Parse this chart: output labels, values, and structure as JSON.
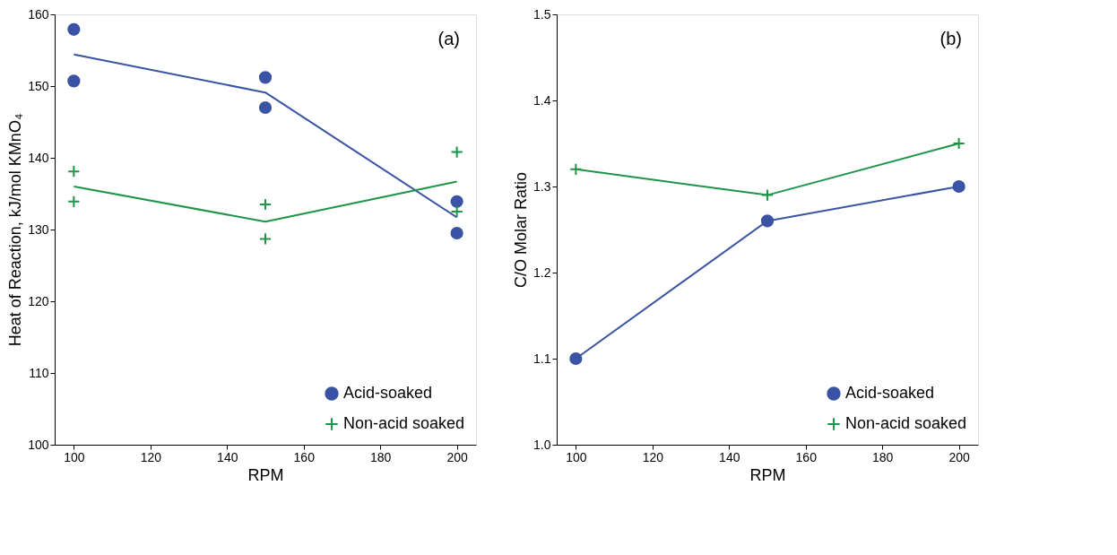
{
  "chart_data": [
    {
      "type": "scatter",
      "xlabel": "RPM",
      "ylabel": "Heat of Reaction, kJ/mol KMnO₄",
      "xlim": [
        95,
        205
      ],
      "xticks": [
        100,
        120,
        140,
        160,
        180,
        200
      ],
      "ylim": [
        100,
        160
      ],
      "yticks": [
        100,
        110,
        120,
        130,
        140,
        150,
        160
      ],
      "grid": false,
      "legend": "bottom right",
      "annotations": [
        "(a)"
      ],
      "series": [
        {
          "name": "Acid-soaked",
          "marker": "circle",
          "color": "#3a53a4",
          "x": [
            100,
            100,
            150,
            150,
            200,
            200
          ],
          "values": [
            157.9,
            150.7,
            151.2,
            147.0,
            133.9,
            129.5
          ]
        },
        {
          "name": "Non-acid soaked",
          "marker": "cross",
          "color": "#1e9448",
          "x": [
            100,
            100,
            150,
            150,
            200,
            200
          ],
          "values": [
            138.1,
            133.9,
            133.5,
            128.7,
            140.8,
            132.5
          ]
        },
        {
          "type": "line",
          "marker": "none",
          "color": "#3a53a4",
          "x": [
            100,
            150,
            200
          ],
          "values": [
            154.4,
            149.1,
            131.7
          ]
        },
        {
          "type": "line",
          "marker": "none",
          "color": "#1e9448",
          "x": [
            100,
            150,
            200
          ],
          "values": [
            136.0,
            131.1,
            136.7
          ]
        }
      ]
    },
    {
      "type": "scatter",
      "xlabel": "RPM",
      "ylabel": "C/O Molar Ratio",
      "xlim": [
        95,
        205
      ],
      "xticks": [
        100,
        120,
        140,
        160,
        180,
        200
      ],
      "ylim": [
        1.0,
        1.5
      ],
      "yticks": [
        {
          "value": 1.0,
          "label": "1.0"
        },
        1.1,
        1.2,
        1.3,
        1.4,
        1.5
      ],
      "grid": false,
      "legend": "bottom right",
      "annotations": [
        "(b)"
      ],
      "series": [
        {
          "name": "Acid-soaked",
          "marker": "circle",
          "color": "#3a53a4",
          "x": [
            100,
            150,
            200
          ],
          "values": [
            1.1,
            1.26,
            1.3
          ]
        },
        {
          "name": "Non-acid soaked",
          "marker": "cross",
          "color": "#1e9448",
          "x": [
            100,
            150,
            200
          ],
          "values": [
            1.32,
            1.29,
            1.35
          ]
        },
        {
          "type": "line",
          "marker": "none",
          "color": "#3a53a4",
          "x": [
            100,
            150,
            200
          ],
          "values": [
            1.1,
            1.26,
            1.3
          ]
        },
        {
          "type": "line",
          "marker": "none",
          "color": "#1e9448",
          "x": [
            100,
            150,
            200
          ],
          "values": [
            1.32,
            1.29,
            1.35
          ]
        }
      ]
    }
  ]
}
